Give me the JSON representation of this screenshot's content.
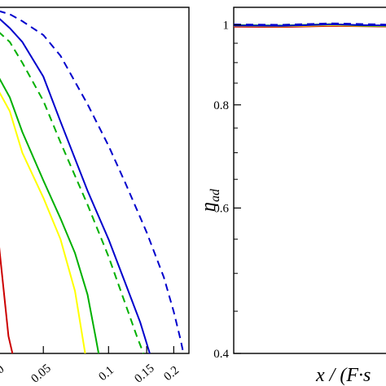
{
  "chart_data": [
    {
      "panel": "left",
      "type": "line",
      "xscale": "log",
      "yscale": "linear",
      "x_ticks": [
        {
          "value": 0.05,
          "label": "0.05"
        },
        {
          "value": 0.1,
          "label": "0.1"
        },
        {
          "value": 0.15,
          "label": "0.15"
        },
        {
          "value": 0.2,
          "label": "0.2"
        }
      ],
      "partial_tick_label": "0",
      "xlim": [
        0.031,
        0.235
      ],
      "ylim": [
        0,
        1.0
      ],
      "xlabel": "",
      "ylabel": "",
      "series": [
        {
          "color": "#cc0000",
          "style": "solid",
          "points": [
            [
              0.031,
              0.33
            ],
            [
              0.0345,
              0.05
            ],
            [
              0.036,
              0.0
            ]
          ]
        },
        {
          "color": "#ffff00",
          "style": "solid",
          "points": [
            [
              0.031,
              0.76
            ],
            [
              0.035,
              0.7
            ],
            [
              0.04,
              0.58
            ],
            [
              0.05,
              0.45
            ],
            [
              0.06,
              0.33
            ],
            [
              0.07,
              0.18
            ],
            [
              0.078,
              0.0
            ]
          ]
        },
        {
          "color": "#00b000",
          "style": "solid",
          "points": [
            [
              0.031,
              0.8
            ],
            [
              0.035,
              0.74
            ],
            [
              0.04,
              0.64
            ],
            [
              0.05,
              0.5
            ],
            [
              0.06,
              0.39
            ],
            [
              0.07,
              0.29
            ],
            [
              0.08,
              0.17
            ],
            [
              0.087,
              0.05
            ],
            [
              0.09,
              0.0
            ]
          ]
        },
        {
          "color": "#00b000",
          "style": "dashed",
          "points": [
            [
              0.031,
              0.93
            ],
            [
              0.035,
              0.9
            ],
            [
              0.04,
              0.84
            ],
            [
              0.05,
              0.73
            ],
            [
              0.06,
              0.61
            ],
            [
              0.08,
              0.43
            ],
            [
              0.1,
              0.28
            ],
            [
              0.12,
              0.14
            ],
            [
              0.135,
              0.05
            ],
            [
              0.145,
              0.0
            ]
          ]
        },
        {
          "color": "#0000cc",
          "style": "solid",
          "points": [
            [
              0.031,
              0.97
            ],
            [
              0.035,
              0.94
            ],
            [
              0.04,
              0.9
            ],
            [
              0.05,
              0.8
            ],
            [
              0.06,
              0.67
            ],
            [
              0.08,
              0.47
            ],
            [
              0.1,
              0.33
            ],
            [
              0.12,
              0.2
            ],
            [
              0.14,
              0.09
            ],
            [
              0.155,
              0.0
            ]
          ]
        },
        {
          "color": "#0000cc",
          "style": "dashed",
          "points": [
            [
              0.031,
              0.99
            ],
            [
              0.035,
              0.98
            ],
            [
              0.04,
              0.96
            ],
            [
              0.05,
              0.92
            ],
            [
              0.06,
              0.86
            ],
            [
              0.08,
              0.72
            ],
            [
              0.1,
              0.6
            ],
            [
              0.12,
              0.49
            ],
            [
              0.15,
              0.35
            ],
            [
              0.18,
              0.22
            ],
            [
              0.2,
              0.12
            ],
            [
              0.215,
              0.04
            ],
            [
              0.22,
              0.01
            ]
          ]
        }
      ]
    },
    {
      "panel": "right",
      "type": "line",
      "xscale": "linear",
      "yscale": "log",
      "y_ticks": [
        {
          "value": 0.4,
          "label": "0.4"
        },
        {
          "value": 0.6,
          "label": "0.6"
        },
        {
          "value": 0.8,
          "label": "0.8"
        },
        {
          "value": 1.0,
          "label": "1"
        }
      ],
      "ylim": [
        0.4,
        1.05
      ],
      "xlim": [
        0,
        1
      ],
      "ylabel": "η",
      "ylabel_subscript": "ad",
      "xlabel": "x / (F·s",
      "series": [
        {
          "color": "#cc0000",
          "style": "solid",
          "points": [
            [
              0,
              0.995
            ],
            [
              0.3,
              0.994
            ],
            [
              0.6,
              0.997
            ],
            [
              0.8,
              0.996
            ],
            [
              1,
              0.995
            ]
          ]
        },
        {
          "color": "#ffff00",
          "style": "solid",
          "points": [
            [
              0,
              0.997
            ],
            [
              0.3,
              0.996
            ],
            [
              0.6,
              0.999
            ],
            [
              0.8,
              0.997
            ],
            [
              1,
              0.996
            ]
          ]
        },
        {
          "color": "#00b000",
          "style": "solid",
          "points": [
            [
              0,
              0.999
            ],
            [
              0.3,
              0.998
            ],
            [
              0.6,
              1.002
            ],
            [
              0.8,
              0.998
            ],
            [
              1,
              0.997
            ]
          ]
        },
        {
          "color": "#00b000",
          "style": "dashed",
          "points": [
            [
              0,
              1.0
            ],
            [
              0.3,
              1.0
            ],
            [
              0.6,
              1.003
            ],
            [
              0.8,
              1.001
            ],
            [
              1,
              0.999
            ]
          ]
        },
        {
          "color": "#0000cc",
          "style": "solid",
          "points": [
            [
              0,
              0.998
            ],
            [
              0.3,
              0.997
            ],
            [
              0.6,
              1.001
            ],
            [
              0.8,
              0.999
            ],
            [
              1,
              0.998
            ]
          ]
        },
        {
          "color": "#0000cc",
          "style": "dashed",
          "points": [
            [
              0,
              1.001
            ],
            [
              0.3,
              1.0
            ],
            [
              0.6,
              1.004
            ],
            [
              0.8,
              1.002
            ],
            [
              1,
              1.0
            ]
          ]
        }
      ]
    }
  ]
}
